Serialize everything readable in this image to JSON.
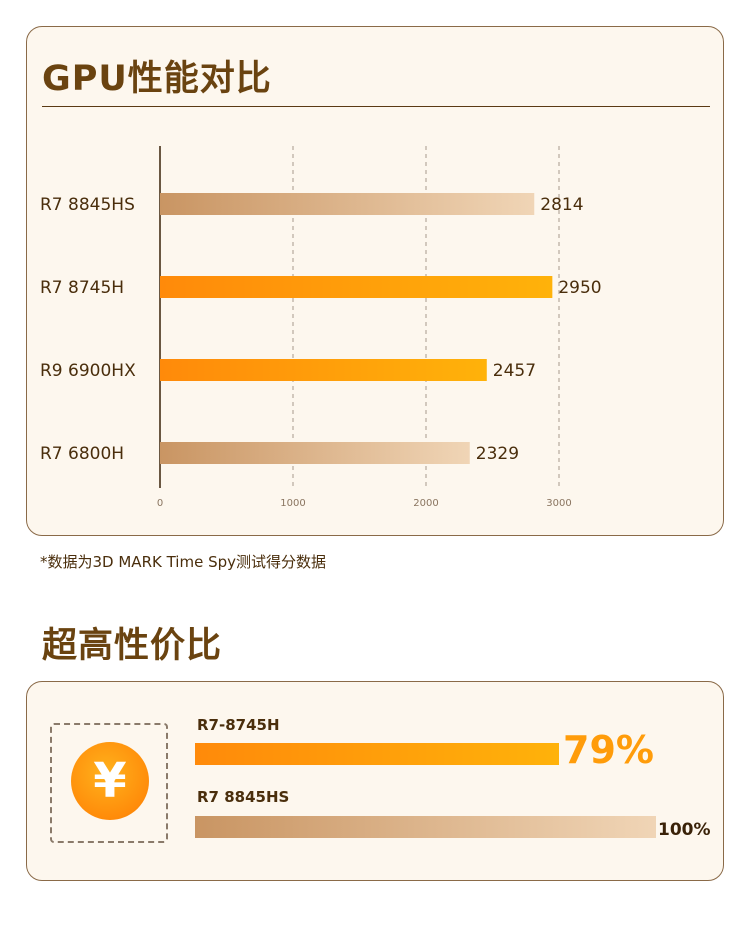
{
  "gpu_section": {
    "title": "GPU性能对比",
    "footnote": "*数据为3D MARK Time Spy测试得分数据"
  },
  "chart_data": {
    "type": "bar",
    "orientation": "horizontal",
    "categories": [
      "R7 8845HS",
      "R7 8745H",
      "R9 6900HX",
      "R7 6800H"
    ],
    "values": [
      2814,
      2950,
      2457,
      2329
    ],
    "xlim": [
      0,
      3000
    ],
    "xticks": [
      0,
      1000,
      2000,
      3000
    ],
    "grid": "vertical dashed",
    "highlight_colors": {
      "R7 8845HS": "tan",
      "R7 8745H": "orange",
      "R9 6900HX": "orange",
      "R7 6800H": "tan"
    },
    "colors": {
      "tan_start": "#c99563",
      "tan_end": "#f0d5b6",
      "orange_start": "#ff8a0a",
      "orange_end": "#ffb20a"
    }
  },
  "value_section": {
    "title": "超高性价比",
    "coin_icon": "yen-coin-icon",
    "coin_glyph": "¥",
    "bars": [
      {
        "label": "R7-8745H",
        "value": 79,
        "value_text": "79%",
        "style": "orange"
      },
      {
        "label": "R7 8845HS",
        "value": 100,
        "value_text": "100%",
        "style": "tan"
      }
    ]
  }
}
